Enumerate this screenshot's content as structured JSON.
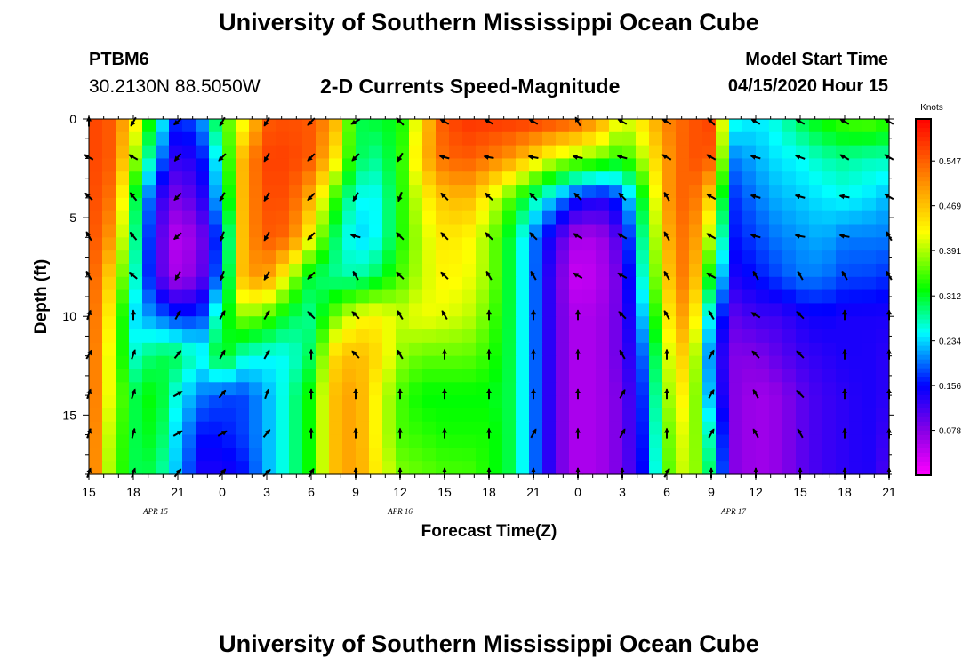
{
  "header": {
    "title": "University of Southern Mississippi Ocean Cube",
    "station": "PTBM6",
    "coordinates": "30.2130N 88.5050W",
    "subtitle": "2-D Currents Speed-Magnitude",
    "model_start_label": "Model Start Time",
    "model_start_value": "04/15/2020 Hour 15"
  },
  "footer": {
    "title": "University of Southern Mississippi Ocean Cube"
  },
  "chart_data": {
    "type": "heatmap",
    "title": "2-D Currents Speed-Magnitude",
    "xlabel": "Forecast Time(Z)",
    "ylabel": "Depth (ft)",
    "x_hours_from_start": [
      0,
      54
    ],
    "x_tick_labels": [
      "15",
      "18",
      "21",
      "0",
      "3",
      "6",
      "9",
      "12",
      "15",
      "18",
      "21",
      "0",
      "3",
      "6",
      "9",
      "12",
      "15",
      "18",
      "21"
    ],
    "x_major_tick_step_hours": 3,
    "x_minor_tick_step_hours": 1,
    "day_labels": [
      {
        "label": "APR 15",
        "hour": 4.5
      },
      {
        "label": "APR 16",
        "hour": 21
      },
      {
        "label": "APR 17",
        "hour": 43.5
      }
    ],
    "ylim": [
      0,
      18
    ],
    "y_ticks": [
      0,
      5,
      10,
      15
    ],
    "y_minor_step": 1,
    "colorbar": {
      "unit": "Knots",
      "range": [
        0.0,
        0.62
      ],
      "tick_labels": [
        "0.547",
        "0.469",
        "0.391",
        "0.312",
        "0.234",
        "0.156",
        "0.078"
      ],
      "tick_values": [
        0.547,
        0.469,
        0.391,
        0.312,
        0.234,
        0.156,
        0.078
      ]
    },
    "speed_rows_depth_ft": [
      0,
      2,
      4,
      6,
      8,
      10,
      12,
      14,
      16,
      18
    ],
    "speed_cols_hours": [
      0,
      1.5,
      3,
      4.5,
      6,
      7.5,
      9,
      10.5,
      12,
      13.5,
      15,
      16.5,
      18,
      19.5,
      21,
      22.5,
      24,
      25.5,
      27,
      28.5,
      30,
      31.5,
      33,
      34.5,
      36,
      37.5,
      39,
      40.5,
      42,
      43.5,
      45,
      46.5,
      48,
      49.5,
      51,
      52.5,
      54
    ],
    "speed_knots": [
      [
        0.57,
        0.55,
        0.45,
        0.28,
        0.16,
        0.2,
        0.34,
        0.42,
        0.55,
        0.56,
        0.55,
        0.5,
        0.3,
        0.31,
        0.32,
        0.45,
        0.56,
        0.58,
        0.58,
        0.58,
        0.58,
        0.57,
        0.55,
        0.5,
        0.4,
        0.45,
        0.52,
        0.55,
        0.57,
        0.26,
        0.24,
        0.26,
        0.3,
        0.33,
        0.35,
        0.36,
        0.34
      ],
      [
        0.57,
        0.55,
        0.4,
        0.22,
        0.12,
        0.15,
        0.28,
        0.5,
        0.57,
        0.57,
        0.55,
        0.45,
        0.3,
        0.28,
        0.33,
        0.47,
        0.54,
        0.55,
        0.53,
        0.5,
        0.45,
        0.4,
        0.38,
        0.36,
        0.33,
        0.4,
        0.5,
        0.56,
        0.55,
        0.2,
        0.22,
        0.24,
        0.25,
        0.27,
        0.28,
        0.27,
        0.27
      ],
      [
        0.57,
        0.53,
        0.32,
        0.14,
        0.08,
        0.12,
        0.25,
        0.5,
        0.56,
        0.56,
        0.48,
        0.35,
        0.25,
        0.25,
        0.33,
        0.42,
        0.47,
        0.48,
        0.42,
        0.35,
        0.28,
        0.22,
        0.16,
        0.14,
        0.18,
        0.33,
        0.5,
        0.56,
        0.45,
        0.17,
        0.2,
        0.22,
        0.23,
        0.24,
        0.25,
        0.24,
        0.22
      ],
      [
        0.57,
        0.5,
        0.3,
        0.12,
        0.04,
        0.08,
        0.2,
        0.5,
        0.55,
        0.54,
        0.42,
        0.3,
        0.23,
        0.25,
        0.33,
        0.4,
        0.44,
        0.43,
        0.38,
        0.3,
        0.2,
        0.12,
        0.05,
        0.06,
        0.12,
        0.3,
        0.48,
        0.55,
        0.38,
        0.16,
        0.18,
        0.2,
        0.21,
        0.22,
        0.2,
        0.2,
        0.2
      ],
      [
        0.57,
        0.45,
        0.28,
        0.12,
        0.05,
        0.09,
        0.22,
        0.5,
        0.5,
        0.4,
        0.3,
        0.28,
        0.27,
        0.3,
        0.35,
        0.4,
        0.43,
        0.42,
        0.38,
        0.3,
        0.2,
        0.1,
        0.03,
        0.05,
        0.1,
        0.28,
        0.46,
        0.55,
        0.3,
        0.14,
        0.16,
        0.18,
        0.2,
        0.2,
        0.18,
        0.18,
        0.17
      ],
      [
        0.57,
        0.42,
        0.24,
        0.2,
        0.17,
        0.17,
        0.3,
        0.38,
        0.35,
        0.3,
        0.28,
        0.36,
        0.42,
        0.43,
        0.4,
        0.42,
        0.41,
        0.4,
        0.36,
        0.3,
        0.2,
        0.1,
        0.05,
        0.06,
        0.1,
        0.24,
        0.43,
        0.52,
        0.22,
        0.1,
        0.12,
        0.12,
        0.14,
        0.15,
        0.14,
        0.14,
        0.14
      ],
      [
        0.57,
        0.4,
        0.26,
        0.3,
        0.3,
        0.25,
        0.33,
        0.26,
        0.25,
        0.25,
        0.3,
        0.45,
        0.48,
        0.45,
        0.38,
        0.36,
        0.36,
        0.36,
        0.34,
        0.3,
        0.2,
        0.1,
        0.05,
        0.06,
        0.1,
        0.2,
        0.4,
        0.48,
        0.18,
        0.08,
        0.08,
        0.1,
        0.12,
        0.13,
        0.14,
        0.14,
        0.13
      ],
      [
        0.57,
        0.4,
        0.3,
        0.33,
        0.25,
        0.2,
        0.18,
        0.18,
        0.22,
        0.27,
        0.33,
        0.47,
        0.5,
        0.42,
        0.35,
        0.32,
        0.32,
        0.32,
        0.32,
        0.3,
        0.2,
        0.1,
        0.05,
        0.06,
        0.09,
        0.18,
        0.38,
        0.45,
        0.2,
        0.08,
        0.06,
        0.07,
        0.1,
        0.12,
        0.13,
        0.14,
        0.13
      ],
      [
        0.57,
        0.38,
        0.3,
        0.32,
        0.23,
        0.16,
        0.16,
        0.18,
        0.22,
        0.27,
        0.33,
        0.47,
        0.5,
        0.42,
        0.35,
        0.34,
        0.33,
        0.33,
        0.33,
        0.3,
        0.2,
        0.1,
        0.05,
        0.06,
        0.09,
        0.17,
        0.36,
        0.43,
        0.25,
        0.08,
        0.06,
        0.07,
        0.1,
        0.12,
        0.13,
        0.14,
        0.12
      ],
      [
        0.57,
        0.37,
        0.3,
        0.3,
        0.22,
        0.14,
        0.14,
        0.16,
        0.22,
        0.27,
        0.33,
        0.47,
        0.5,
        0.43,
        0.37,
        0.36,
        0.35,
        0.35,
        0.33,
        0.3,
        0.2,
        0.1,
        0.05,
        0.06,
        0.09,
        0.16,
        0.35,
        0.42,
        0.28,
        0.08,
        0.06,
        0.07,
        0.1,
        0.12,
        0.13,
        0.14,
        0.11
      ]
    ],
    "arrow_cols_hours": [
      0,
      3,
      6,
      9,
      12,
      15,
      18,
      21,
      24,
      27,
      30,
      33,
      36,
      39,
      42,
      45,
      48,
      51,
      54
    ],
    "arrow_rows_depth_ft": [
      0,
      1.8,
      3.8,
      5.8,
      7.8,
      9.8,
      11.8,
      13.8,
      15.8,
      17.8
    ],
    "arrow_direction_deg": [
      [
        0,
        210,
        230,
        210,
        210,
        225,
        240,
        315,
        300,
        300,
        300,
        330,
        300,
        300,
        315,
        300,
        300,
        300,
        300
      ],
      [
        300,
        300,
        220,
        225,
        210,
        225,
        225,
        210,
        285,
        280,
        280,
        280,
        285,
        300,
        300,
        285,
        290,
        300,
        300
      ],
      [
        315,
        320,
        225,
        210,
        210,
        225,
        210,
        200,
        315,
        315,
        315,
        315,
        315,
        330,
        300,
        285,
        285,
        280,
        300
      ],
      [
        330,
        320,
        230,
        200,
        210,
        225,
        285,
        315,
        315,
        315,
        315,
        300,
        300,
        330,
        300,
        285,
        280,
        280,
        330
      ],
      [
        330,
        310,
        210,
        200,
        210,
        225,
        330,
        315,
        315,
        330,
        330,
        300,
        300,
        330,
        300,
        330,
        330,
        330,
        330
      ],
      [
        20,
        0,
        30,
        30,
        30,
        315,
        315,
        330,
        330,
        0,
        0,
        0,
        315,
        330,
        330,
        300,
        315,
        0,
        0
      ],
      [
        30,
        20,
        40,
        30,
        30,
        0,
        315,
        330,
        0,
        0,
        0,
        0,
        330,
        0,
        30,
        315,
        315,
        0,
        0
      ],
      [
        20,
        20,
        60,
        40,
        20,
        0,
        0,
        0,
        0,
        0,
        0,
        0,
        30,
        0,
        30,
        330,
        315,
        0,
        0
      ],
      [
        20,
        15,
        60,
        60,
        40,
        0,
        0,
        0,
        0,
        0,
        30,
        0,
        30,
        0,
        30,
        330,
        330,
        0,
        0
      ],
      [
        20,
        20,
        40,
        40,
        45,
        30,
        0,
        0,
        0,
        0,
        0,
        0,
        0,
        30,
        0,
        0,
        0,
        0,
        0
      ]
    ]
  }
}
